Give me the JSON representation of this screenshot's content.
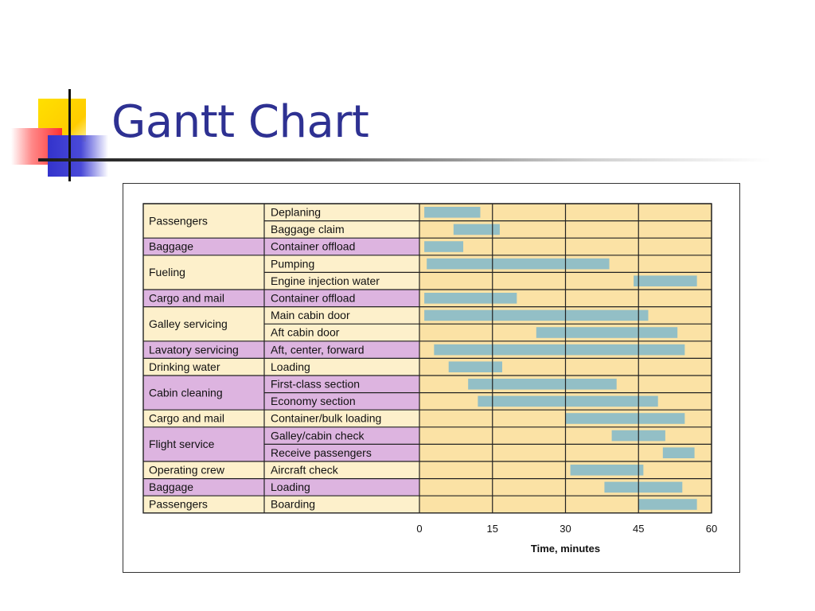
{
  "slide": {
    "title": "Gantt Chart"
  },
  "chart_data": {
    "type": "bar",
    "subtype": "gantt",
    "xlabel": "Time, minutes",
    "xlim": [
      0,
      60
    ],
    "xticks": [
      0,
      15,
      30,
      45,
      60
    ],
    "grid": true,
    "colors": {
      "bar": "#93bfc6",
      "timeline_bg": "#fbe2a5",
      "group_cream": "#fdf0cb",
      "group_purple": "#ddb4e0",
      "border": "#222222"
    },
    "groups": [
      {
        "name": "Passengers",
        "color": "cream",
        "tasks": [
          {
            "name": "Deplaning",
            "start": 1,
            "end": 12.5
          },
          {
            "name": "Baggage claim",
            "start": 7,
            "end": 16.5
          }
        ]
      },
      {
        "name": "Baggage",
        "color": "purple",
        "tasks": [
          {
            "name": "Container offload",
            "start": 1,
            "end": 9
          }
        ]
      },
      {
        "name": "Fueling",
        "color": "cream",
        "tasks": [
          {
            "name": "Pumping",
            "start": 1.5,
            "end": 39
          },
          {
            "name": "Engine injection water",
            "start": 44,
            "end": 57
          }
        ]
      },
      {
        "name": "Cargo and mail",
        "color": "purple",
        "tasks": [
          {
            "name": "Container offload",
            "start": 1,
            "end": 20
          }
        ]
      },
      {
        "name": "Galley servicing",
        "color": "cream",
        "tasks": [
          {
            "name": "Main cabin door",
            "start": 1,
            "end": 47
          },
          {
            "name": "Aft cabin door",
            "start": 24,
            "end": 53
          }
        ]
      },
      {
        "name": "Lavatory servicing",
        "color": "purple",
        "tasks": [
          {
            "name": "Aft, center, forward",
            "start": 3,
            "end": 54.5
          }
        ]
      },
      {
        "name": "Drinking water",
        "color": "cream",
        "tasks": [
          {
            "name": "Loading",
            "start": 6,
            "end": 17
          }
        ]
      },
      {
        "name": "Cabin cleaning",
        "color": "purple",
        "tasks": [
          {
            "name": "First-class section",
            "start": 10,
            "end": 40.5
          },
          {
            "name": "Economy section",
            "start": 12,
            "end": 49
          }
        ]
      },
      {
        "name": "Cargo and mail",
        "color": "cream",
        "tasks": [
          {
            "name": "Container/bulk loading",
            "start": 30,
            "end": 54.5
          }
        ]
      },
      {
        "name": "Flight service",
        "color": "purple",
        "tasks": [
          {
            "name": "Galley/cabin check",
            "start": 39.5,
            "end": 50.5
          },
          {
            "name": "Receive passengers",
            "start": 50,
            "end": 56.5
          }
        ]
      },
      {
        "name": "Operating crew",
        "color": "cream",
        "tasks": [
          {
            "name": "Aircraft check",
            "start": 31,
            "end": 46
          }
        ]
      },
      {
        "name": "Baggage",
        "color": "purple",
        "tasks": [
          {
            "name": "Loading",
            "start": 38,
            "end": 54
          }
        ]
      },
      {
        "name": "Passengers",
        "color": "cream",
        "tasks": [
          {
            "name": "Boarding",
            "start": 45,
            "end": 57
          }
        ]
      }
    ]
  }
}
